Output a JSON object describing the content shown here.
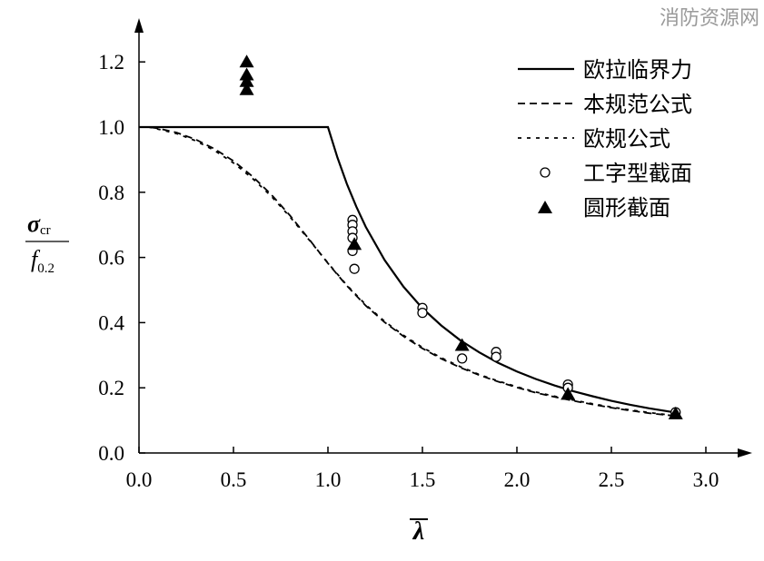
{
  "watermark": "消防资源网",
  "chart_data": {
    "type": "line",
    "xlim": [
      0,
      3.0
    ],
    "ylim": [
      0,
      1.3
    ],
    "x_ticks": [
      "0.0",
      "0.5",
      "1.0",
      "1.5",
      "2.0",
      "2.5",
      "3.0"
    ],
    "y_ticks": [
      "0.0",
      "0.2",
      "0.4",
      "0.6",
      "0.8",
      "1.0",
      "1.2"
    ],
    "xlabel": "λ",
    "ylabel": {
      "numerator": "σ",
      "numerator_sub": "cr",
      "denominator": "f",
      "denominator_sub": "0.2"
    },
    "legend_position": "top-right",
    "series": [
      {
        "name": "欧拉临界力",
        "style": "solid",
        "x": [
          0,
          0.1,
          0.2,
          0.3,
          0.4,
          0.5,
          0.6,
          0.7,
          0.8,
          0.9,
          1.0,
          1.05,
          1.1,
          1.15,
          1.2,
          1.3,
          1.4,
          1.5,
          1.6,
          1.7,
          1.8,
          1.9,
          2.0,
          2.1,
          2.2,
          2.3,
          2.4,
          2.5,
          2.6,
          2.7,
          2.85
        ],
        "y": [
          1.0,
          1.0,
          1.0,
          1.0,
          1.0,
          1.0,
          1.0,
          1.0,
          1.0,
          1.0,
          1.0,
          0.907,
          0.826,
          0.756,
          0.694,
          0.592,
          0.51,
          0.444,
          0.391,
          0.346,
          0.309,
          0.277,
          0.25,
          0.227,
          0.207,
          0.189,
          0.174,
          0.16,
          0.148,
          0.137,
          0.123
        ]
      },
      {
        "name": "本规范公式",
        "style": "dashed",
        "x": [
          0,
          0.05,
          0.1,
          0.2,
          0.3,
          0.4,
          0.5,
          0.6,
          0.7,
          0.8,
          0.9,
          1.0,
          1.1,
          1.2,
          1.3,
          1.4,
          1.5,
          1.6,
          1.7,
          1.8,
          1.9,
          2.0,
          2.1,
          2.2,
          2.3,
          2.4,
          2.5,
          2.6,
          2.7,
          2.85
        ],
        "y": [
          1.0,
          1.0,
          0.996,
          0.983,
          0.962,
          0.933,
          0.896,
          0.849,
          0.793,
          0.728,
          0.656,
          0.582,
          0.513,
          0.452,
          0.401,
          0.358,
          0.321,
          0.289,
          0.262,
          0.239,
          0.219,
          0.201,
          0.185,
          0.172,
          0.16,
          0.149,
          0.139,
          0.13,
          0.122,
          0.113
        ]
      },
      {
        "name": "欧规公式",
        "style": "dotted",
        "x": [
          0,
          0.05,
          0.1,
          0.2,
          0.3,
          0.4,
          0.5,
          0.6,
          0.7,
          0.8,
          0.9,
          1.0,
          1.1,
          1.2,
          1.3,
          1.4,
          1.5,
          1.6,
          1.7,
          1.8,
          1.9,
          2.0,
          2.1,
          2.2,
          2.3,
          2.4,
          2.5,
          2.6,
          2.7,
          2.85
        ],
        "y": [
          1.0,
          1.0,
          0.994,
          0.98,
          0.958,
          0.928,
          0.89,
          0.843,
          0.788,
          0.724,
          0.654,
          0.583,
          0.515,
          0.455,
          0.404,
          0.361,
          0.324,
          0.292,
          0.265,
          0.241,
          0.221,
          0.203,
          0.187,
          0.174,
          0.162,
          0.151,
          0.141,
          0.132,
          0.124,
          0.114
        ]
      },
      {
        "name": "工字型截面",
        "style": "circle",
        "x": [
          1.13,
          1.13,
          1.13,
          1.13,
          1.13,
          1.14,
          1.5,
          1.5,
          1.71,
          1.89,
          1.89,
          2.27,
          2.27,
          2.84
        ],
        "y": [
          0.715,
          0.7,
          0.68,
          0.66,
          0.62,
          0.565,
          0.445,
          0.43,
          0.29,
          0.31,
          0.295,
          0.21,
          0.2,
          0.125
        ]
      },
      {
        "name": "圆形截面",
        "style": "triangle",
        "x": [
          0.57,
          0.57,
          0.57,
          0.57,
          1.14,
          1.71,
          2.27,
          2.84
        ],
        "y": [
          1.2,
          1.16,
          1.14,
          1.115,
          0.64,
          0.33,
          0.18,
          0.12
        ]
      }
    ]
  }
}
